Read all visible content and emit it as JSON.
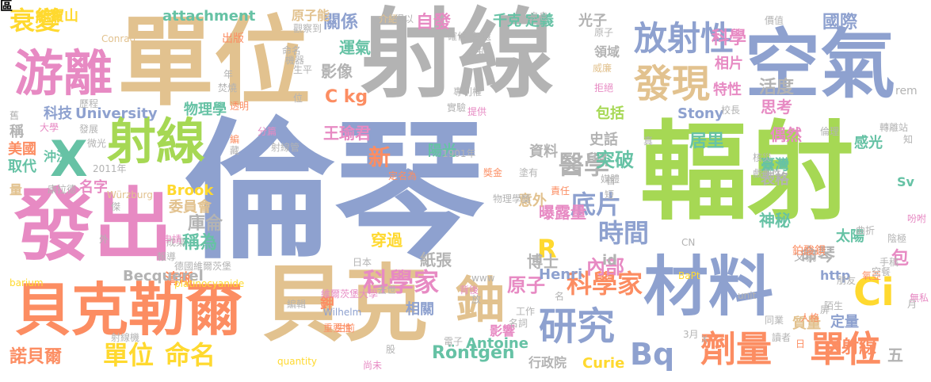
{
  "palette": {
    "blue": "#8ea1cf",
    "tan": "#e2c28f",
    "gray": "#b3b3b3",
    "green": "#a6d854",
    "orange": "#fc8d62",
    "pink": "#e78ac3",
    "teal": "#66c2a5",
    "yellow": "#ffd92f"
  },
  "words": [
    {
      "t": "倫琴",
      "c": "blue"
    },
    {
      "t": "射線",
      "c": "gray"
    },
    {
      "t": "單位",
      "c": "tan"
    },
    {
      "t": "輻射",
      "c": "green"
    },
    {
      "t": "空氣",
      "c": "blue"
    },
    {
      "t": "貝克",
      "c": "tan"
    },
    {
      "t": "發出",
      "c": "pink"
    },
    {
      "t": "材料",
      "c": "blue"
    },
    {
      "t": "貝克勒爾",
      "c": "orange"
    },
    {
      "t": "游離",
      "c": "pink"
    },
    {
      "t": "射線",
      "c": "green"
    },
    {
      "t": "X",
      "c": "teal"
    },
    {
      "t": "發現",
      "c": "tan"
    },
    {
      "t": "放射性",
      "c": "blue"
    },
    {
      "t": "研究",
      "c": "blue"
    },
    {
      "t": "鈾",
      "c": "tan"
    },
    {
      "t": "Ci",
      "c": "yellow"
    },
    {
      "t": "劑量",
      "c": "orange"
    },
    {
      "t": "單位",
      "c": "orange"
    },
    {
      "t": "單位",
      "c": "yellow"
    },
    {
      "t": "命名",
      "c": "yellow"
    },
    {
      "t": "衰變",
      "c": "yellow"
    },
    {
      "t": "醫學",
      "c": "gray"
    },
    {
      "t": "時間",
      "c": "blue"
    },
    {
      "t": "底片",
      "c": "blue"
    },
    {
      "t": "科學家",
      "c": "orange"
    },
    {
      "t": "科學家",
      "c": "pink"
    },
    {
      "t": "Bq",
      "c": "blue"
    },
    {
      "t": "Röntgen",
      "c": "teal"
    },
    {
      "t": "原子",
      "c": "pink"
    },
    {
      "t": "R",
      "c": "yellow"
    },
    {
      "t": "突破",
      "c": "teal"
    },
    {
      "t": "內部",
      "c": "pink"
    },
    {
      "t": "新",
      "c": "orange"
    },
    {
      "t": "諾貝爾",
      "c": "orange"
    },
    {
      "t": "X射線",
      "c": "orange"
    },
    {
      "t": "命琴",
      "c": "gray"
    },
    {
      "t": "國際",
      "c": "blue"
    },
    {
      "t": "科學",
      "c": "pink"
    },
    {
      "t": "活度",
      "c": "gray"
    },
    {
      "t": "自發",
      "c": "pink"
    },
    {
      "t": "關係",
      "c": "blue"
    },
    {
      "t": "影像",
      "c": "gray"
    },
    {
      "t": "運氣",
      "c": "teal"
    },
    {
      "t": "attachment",
      "c": "teal"
    },
    {
      "t": "翁寶山",
      "c": "yellow"
    },
    {
      "t": "科技",
      "c": "blue"
    },
    {
      "t": "University",
      "c": "blue"
    },
    {
      "t": "物理學",
      "c": "teal"
    },
    {
      "t": "王瑜君",
      "c": "pink"
    },
    {
      "t": "C kg",
      "c": "orange"
    },
    {
      "t": "原子能",
      "c": "tan"
    },
    {
      "t": "出版",
      "c": "orange"
    },
    {
      "t": "千克",
      "c": "teal"
    },
    {
      "t": "定義",
      "c": "teal"
    },
    {
      "t": "光子",
      "c": "gray"
    },
    {
      "t": "相片",
      "c": "pink"
    },
    {
      "t": "包括",
      "c": "green"
    },
    {
      "t": "居里",
      "c": "teal"
    },
    {
      "t": "思考",
      "c": "pink"
    },
    {
      "t": "偶然",
      "c": "pink"
    },
    {
      "t": "特性",
      "c": "pink"
    },
    {
      "t": "臺灣",
      "c": "teal"
    },
    {
      "t": "感光",
      "c": "teal"
    },
    {
      "t": "美國",
      "c": "orange"
    },
    {
      "t": "取代",
      "c": "teal"
    },
    {
      "t": "沖洗",
      "c": "teal"
    },
    {
      "t": "名字",
      "c": "pink"
    },
    {
      "t": "委員會",
      "c": "tan"
    },
    {
      "t": "Brook",
      "c": "yellow"
    },
    {
      "t": "Stony",
      "c": "blue"
    },
    {
      "t": "庫侖",
      "c": "gray"
    },
    {
      "t": "稱為",
      "c": "teal"
    },
    {
      "t": "曝露量",
      "c": "pink"
    },
    {
      "t": "穿過",
      "c": "yellow"
    },
    {
      "t": "紙張",
      "c": "gray"
    },
    {
      "t": "博士",
      "c": "gray"
    },
    {
      "t": "Henri",
      "c": "blue"
    },
    {
      "t": "清晰",
      "c": "orange"
    },
    {
      "t": "Becquerel",
      "c": "gray"
    },
    {
      "t": "神秘",
      "c": "teal"
    },
    {
      "t": "包",
      "c": "pink"
    },
    {
      "t": "http",
      "c": "blue"
    },
    {
      "t": "表格",
      "c": "gray"
    },
    {
      "t": "資料",
      "c": "gray"
    },
    {
      "t": "意外",
      "c": "tan"
    },
    {
      "t": "太陽",
      "c": "teal"
    },
    {
      "t": "Antoine",
      "c": "teal"
    },
    {
      "t": "Curie",
      "c": "yellow"
    },
    {
      "t": "質量",
      "c": "tan"
    },
    {
      "t": "定量",
      "c": "blue"
    },
    {
      "t": "五",
      "c": "gray"
    },
    {
      "t": "鉀",
      "c": "orange"
    },
    {
      "t": "相關",
      "c": "blue"
    },
    {
      "t": "陽光",
      "c": "teal"
    },
    {
      "t": "史話",
      "c": "gray"
    },
    {
      "t": "領域",
      "c": "gray"
    },
    {
      "t": "id",
      "c": "gray"
    },
    {
      "t": "父親",
      "c": "gray"
    },
    {
      "t": "Sv",
      "c": "teal"
    },
    {
      "t": "rem",
      "c": "gray"
    },
    {
      "t": "鉑酸鋇",
      "c": "orange"
    },
    {
      "t": "稱",
      "c": "gray"
    },
    {
      "t": "量",
      "c": "tan"
    },
    {
      "t": "影響",
      "c": "pink"
    },
    {
      "t": "行政院",
      "c": "gray"
    },
    {
      "t": "Conrad",
      "c": "tan"
    },
    {
      "t": "確信",
      "c": "gray"
    },
    {
      "t": "無遺",
      "c": "gray"
    },
    {
      "t": "專利權",
      "c": "gray"
    },
    {
      "t": "提供",
      "c": "pink"
    },
    {
      "t": "實驗",
      "c": "gray"
    },
    {
      "t": "拒絕",
      "c": "pink"
    },
    {
      "t": "威廉",
      "c": "tan"
    },
    {
      "t": "校長",
      "c": "gray"
    },
    {
      "t": "轉離站",
      "c": "gray"
    },
    {
      "t": "倫理",
      "c": "gray"
    },
    {
      "t": "知",
      "c": "gray"
    },
    {
      "t": "核災",
      "c": "gray"
    },
    {
      "t": "戲劇性",
      "c": "gray"
    },
    {
      "t": "曲折",
      "c": "gray"
    },
    {
      "t": "陰極",
      "c": "gray"
    },
    {
      "t": "吩咐",
      "c": "pink"
    },
    {
      "t": "手稿",
      "c": "gray"
    },
    {
      "t": "氧亞",
      "c": "orange"
    },
    {
      "t": "朋友",
      "c": "gray"
    },
    {
      "t": "空餐",
      "c": "gray"
    },
    {
      "t": "無私",
      "c": "pink"
    },
    {
      "t": "月",
      "c": "gray"
    },
    {
      "t": "屏",
      "c": "gray"
    },
    {
      "t": "人格",
      "c": "orange"
    },
    {
      "t": "讀者",
      "c": "gray"
    },
    {
      "t": "同業",
      "c": "gray"
    },
    {
      "t": "3月",
      "c": "gray"
    },
    {
      "t": "名詞",
      "c": "gray"
    },
    {
      "t": "工作",
      "c": "gray"
    },
    {
      "t": "背後",
      "c": "pink"
    },
    {
      "t": "重要性",
      "c": "orange"
    },
    {
      "t": "生前",
      "c": "orange"
    },
    {
      "t": "電子",
      "c": "gray"
    },
    {
      "t": "尚未",
      "c": "pink"
    },
    {
      "t": "quantity",
      "c": "yellow"
    },
    {
      "t": "編輯",
      "c": "gray"
    },
    {
      "t": "Wilhelm",
      "c": "blue"
    },
    {
      "t": "射線機",
      "c": "gray"
    },
    {
      "t": "barium",
      "c": "yellow"
    },
    {
      "t": "platinocyanide",
      "c": "yellow"
    },
    {
      "t": "日本",
      "c": "gray"
    },
    {
      "t": "德國維爾茨堡",
      "c": "gray"
    },
    {
      "t": "報導",
      "c": "gray"
    },
    {
      "t": "成果",
      "c": "gray"
    },
    {
      "t": "申請",
      "c": "pink"
    },
    {
      "t": "維爾茨堡大學",
      "c": "pink"
    },
    {
      "t": "去世",
      "c": "gray"
    },
    {
      "t": "Würzburg",
      "c": "tan"
    },
    {
      "t": "康拉德",
      "c": "gray"
    },
    {
      "t": "2011年",
      "c": "gray"
    },
    {
      "t": "微光",
      "c": "gray"
    },
    {
      "t": "發展",
      "c": "gray"
    },
    {
      "t": "大學",
      "c": "pink"
    },
    {
      "t": "舊",
      "c": "gray"
    },
    {
      "t": "歷程",
      "c": "gray"
    },
    {
      "t": "焚燒",
      "c": "gray"
    },
    {
      "t": "透明",
      "c": "orange"
    },
    {
      "t": "分篇",
      "c": "pink"
    },
    {
      "t": "射線管",
      "c": "gray"
    },
    {
      "t": "塗有",
      "c": "gray"
    },
    {
      "t": "獎金",
      "c": "orange"
    },
    {
      "t": "定名為",
      "c": "orange"
    },
    {
      "t": "1901年",
      "c": "gray"
    },
    {
      "t": "物理學獎",
      "c": "gray"
    },
    {
      "t": "責任",
      "c": "orange"
    },
    {
      "t": "媒體",
      "c": "gray"
    },
    {
      "t": "BaPt",
      "c": "yellow"
    },
    {
      "t": "觀察到",
      "c": "gray"
    },
    {
      "t": "介紹",
      "c": "tan"
    },
    {
      "t": "得以",
      "c": "gray"
    },
    {
      "t": "告知",
      "c": "gray"
    },
    {
      "t": "息息",
      "c": "gray"
    },
    {
      "t": "價值",
      "c": "gray"
    },
    {
      "t": "原子",
      "c": "gray"
    },
    {
      "t": "機器",
      "c": "gray"
    },
    {
      "t": "生平",
      "c": "gray"
    },
    {
      "t": "陌生",
      "c": "gray"
    },
    {
      "t": "CN",
      "c": "gray"
    },
    {
      "t": "www",
      "c": "gray"
    },
    {
      "t": "unit",
      "c": "gray"
    },
    {
      "t": "日",
      "c": "orange"
    },
    {
      "t": "短",
      "c": "gray"
    },
    {
      "t": "年",
      "c": "gray"
    },
    {
      "t": "位",
      "c": "gray"
    },
    {
      "t": "股",
      "c": "gray"
    },
    {
      "t": "放",
      "c": "gray"
    },
    {
      "t": "名",
      "c": "gray"
    },
    {
      "t": "外",
      "c": "gray"
    },
    {
      "t": "X",
      "c": "gray"
    },
    {
      "t": "編",
      "c": "orange"
    },
    {
      "t": "藏",
      "c": "gray"
    },
    {
      "t": "首",
      "c": "gray"
    },
    {
      "t": "傑",
      "c": "gray"
    },
    {
      "t": "真",
      "c": "gray"
    },
    {
      "t": "命名",
      "c": "gray"
    },
    {
      "t": "區",
      "c": "gray"
    }
  ]
}
